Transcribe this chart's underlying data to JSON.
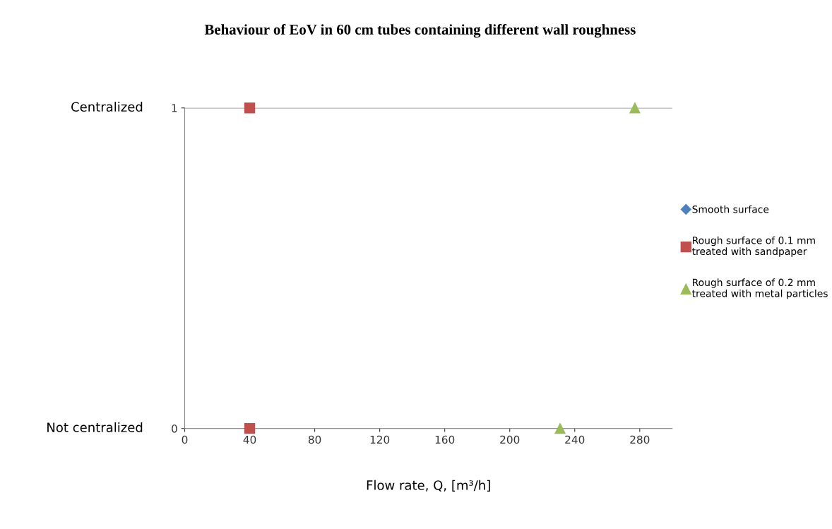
{
  "chart_data": {
    "type": "scatter",
    "title": "Behaviour of EoV in 60 cm tubes containing different wall roughness",
    "xlabel": "Flow rate, Q, [m³/h]",
    "xlim": [
      0,
      300
    ],
    "xticks": [
      0,
      40,
      80,
      120,
      160,
      200,
      240,
      280
    ],
    "ylim": [
      0,
      1
    ],
    "yticks": [
      0,
      1
    ],
    "grid": "y",
    "legend": "right",
    "annotations": [
      "Centralized",
      "Not centralized"
    ],
    "series": [
      {
        "name": "Smooth surface",
        "color": "#4f81bd",
        "marker": "diamond"
      },
      {
        "name": "Rough surface of 0.1 mm\ntreated with sandpaper",
        "color": "#c0504d",
        "marker": "square",
        "x": [
          40,
          40
        ],
        "values": [
          1,
          0
        ]
      },
      {
        "name": "Rough surface of 0.2 mm\ntreated with metal particles",
        "color": "#9bbb59",
        "marker": "triangle",
        "x": [
          277,
          231
        ],
        "values": [
          1,
          0
        ]
      }
    ]
  }
}
